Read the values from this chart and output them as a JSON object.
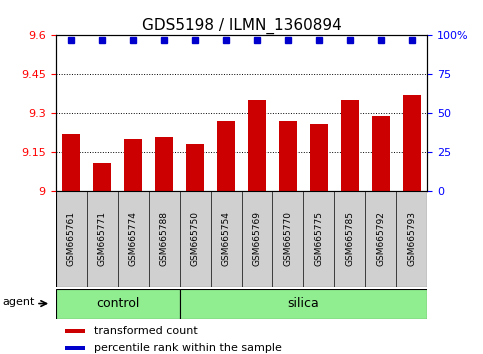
{
  "title": "GDS5198 / ILMN_1360894",
  "samples": [
    "GSM665761",
    "GSM665771",
    "GSM665774",
    "GSM665788",
    "GSM665750",
    "GSM665754",
    "GSM665769",
    "GSM665770",
    "GSM665775",
    "GSM665785",
    "GSM665792",
    "GSM665793"
  ],
  "bar_values": [
    9.22,
    9.11,
    9.2,
    9.21,
    9.18,
    9.27,
    9.35,
    9.27,
    9.26,
    9.35,
    9.29,
    9.37
  ],
  "percentile_values": [
    97,
    97,
    97,
    97,
    97,
    97,
    97,
    97,
    97,
    97,
    97,
    97
  ],
  "bar_color": "#cc0000",
  "percentile_color": "#0000cc",
  "ylim_left": [
    9.0,
    9.6
  ],
  "ylim_right": [
    0,
    100
  ],
  "yticks_left": [
    9.0,
    9.15,
    9.3,
    9.45,
    9.6
  ],
  "yticks_right": [
    0,
    25,
    50,
    75,
    100
  ],
  "ytick_labels_left": [
    "9",
    "9.15",
    "9.3",
    "9.45",
    "9.6"
  ],
  "ytick_labels_right": [
    "0",
    "25",
    "50",
    "75",
    "100%"
  ],
  "control_count": 4,
  "silica_count": 8,
  "group_row_color": "#90ee90",
  "bar_color_legend": "#cc0000",
  "percentile_color_legend": "#0000cc",
  "bar_width": 0.6,
  "title_fontsize": 11,
  "tick_fontsize": 8,
  "label_fontsize": 8,
  "sample_fontsize": 6.5,
  "group_fontsize": 9
}
